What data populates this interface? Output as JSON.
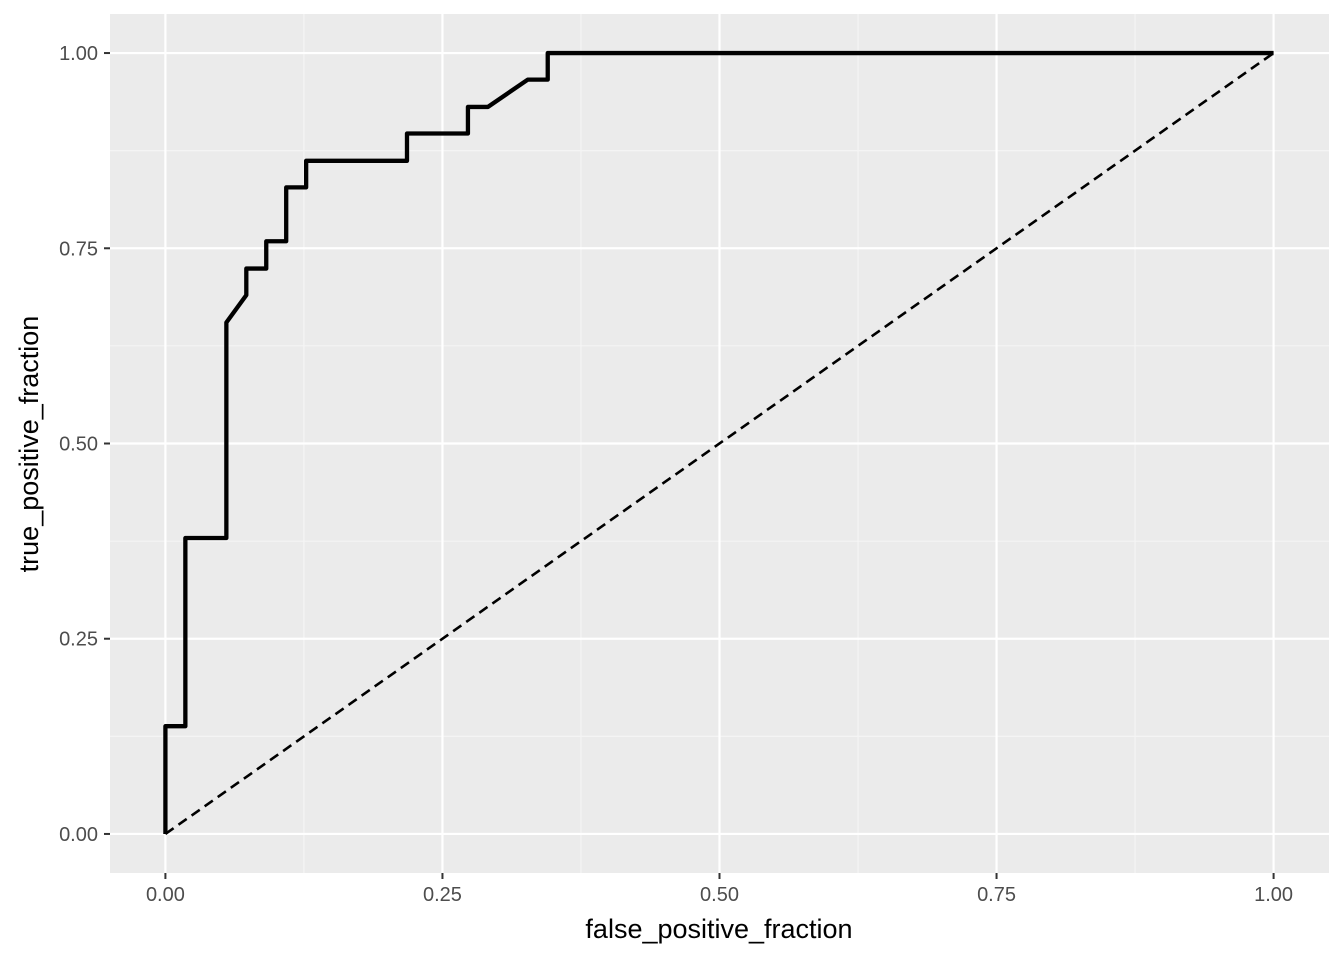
{
  "colors": {
    "panel_background": "#ebebeb",
    "grid_major": "#ffffff",
    "grid_minor": "#f5f5f5",
    "line": "#000000",
    "tick_text": "#4d4d4d"
  },
  "chart_data": {
    "type": "line",
    "title": "",
    "xlabel": "false_positive_fraction",
    "ylabel": "true_positive_fraction",
    "xlim": [
      -0.05,
      1.05
    ],
    "ylim": [
      -0.05,
      1.05
    ],
    "x_ticks": [
      0,
      0.25,
      0.5,
      0.75,
      1
    ],
    "x_tick_labels": [
      "0.00",
      "0.25",
      "0.50",
      "0.75",
      "1.00"
    ],
    "y_ticks": [
      0,
      0.25,
      0.5,
      0.75,
      1
    ],
    "y_tick_labels": [
      "0.00",
      "0.25",
      "0.50",
      "0.75",
      "1.00"
    ],
    "grid": true,
    "series": [
      {
        "style": "solid",
        "points": [
          [
            0,
            0
          ],
          [
            0,
            0.138
          ],
          [
            0.018,
            0.138
          ],
          [
            0.018,
            0.379
          ],
          [
            0.055,
            0.379
          ],
          [
            0.055,
            0.655
          ],
          [
            0.073,
            0.69
          ],
          [
            0.073,
            0.724
          ],
          [
            0.091,
            0.724
          ],
          [
            0.091,
            0.759
          ],
          [
            0.109,
            0.759
          ],
          [
            0.109,
            0.828
          ],
          [
            0.127,
            0.828
          ],
          [
            0.127,
            0.862
          ],
          [
            0.218,
            0.862
          ],
          [
            0.218,
            0.897
          ],
          [
            0.273,
            0.897
          ],
          [
            0.273,
            0.931
          ],
          [
            0.291,
            0.931
          ],
          [
            0.327,
            0.966
          ],
          [
            0.345,
            0.966
          ],
          [
            0.345,
            1
          ],
          [
            1,
            1
          ]
        ]
      },
      {
        "style": "dashed",
        "points": [
          [
            0,
            0
          ],
          [
            1,
            1
          ]
        ]
      }
    ]
  }
}
